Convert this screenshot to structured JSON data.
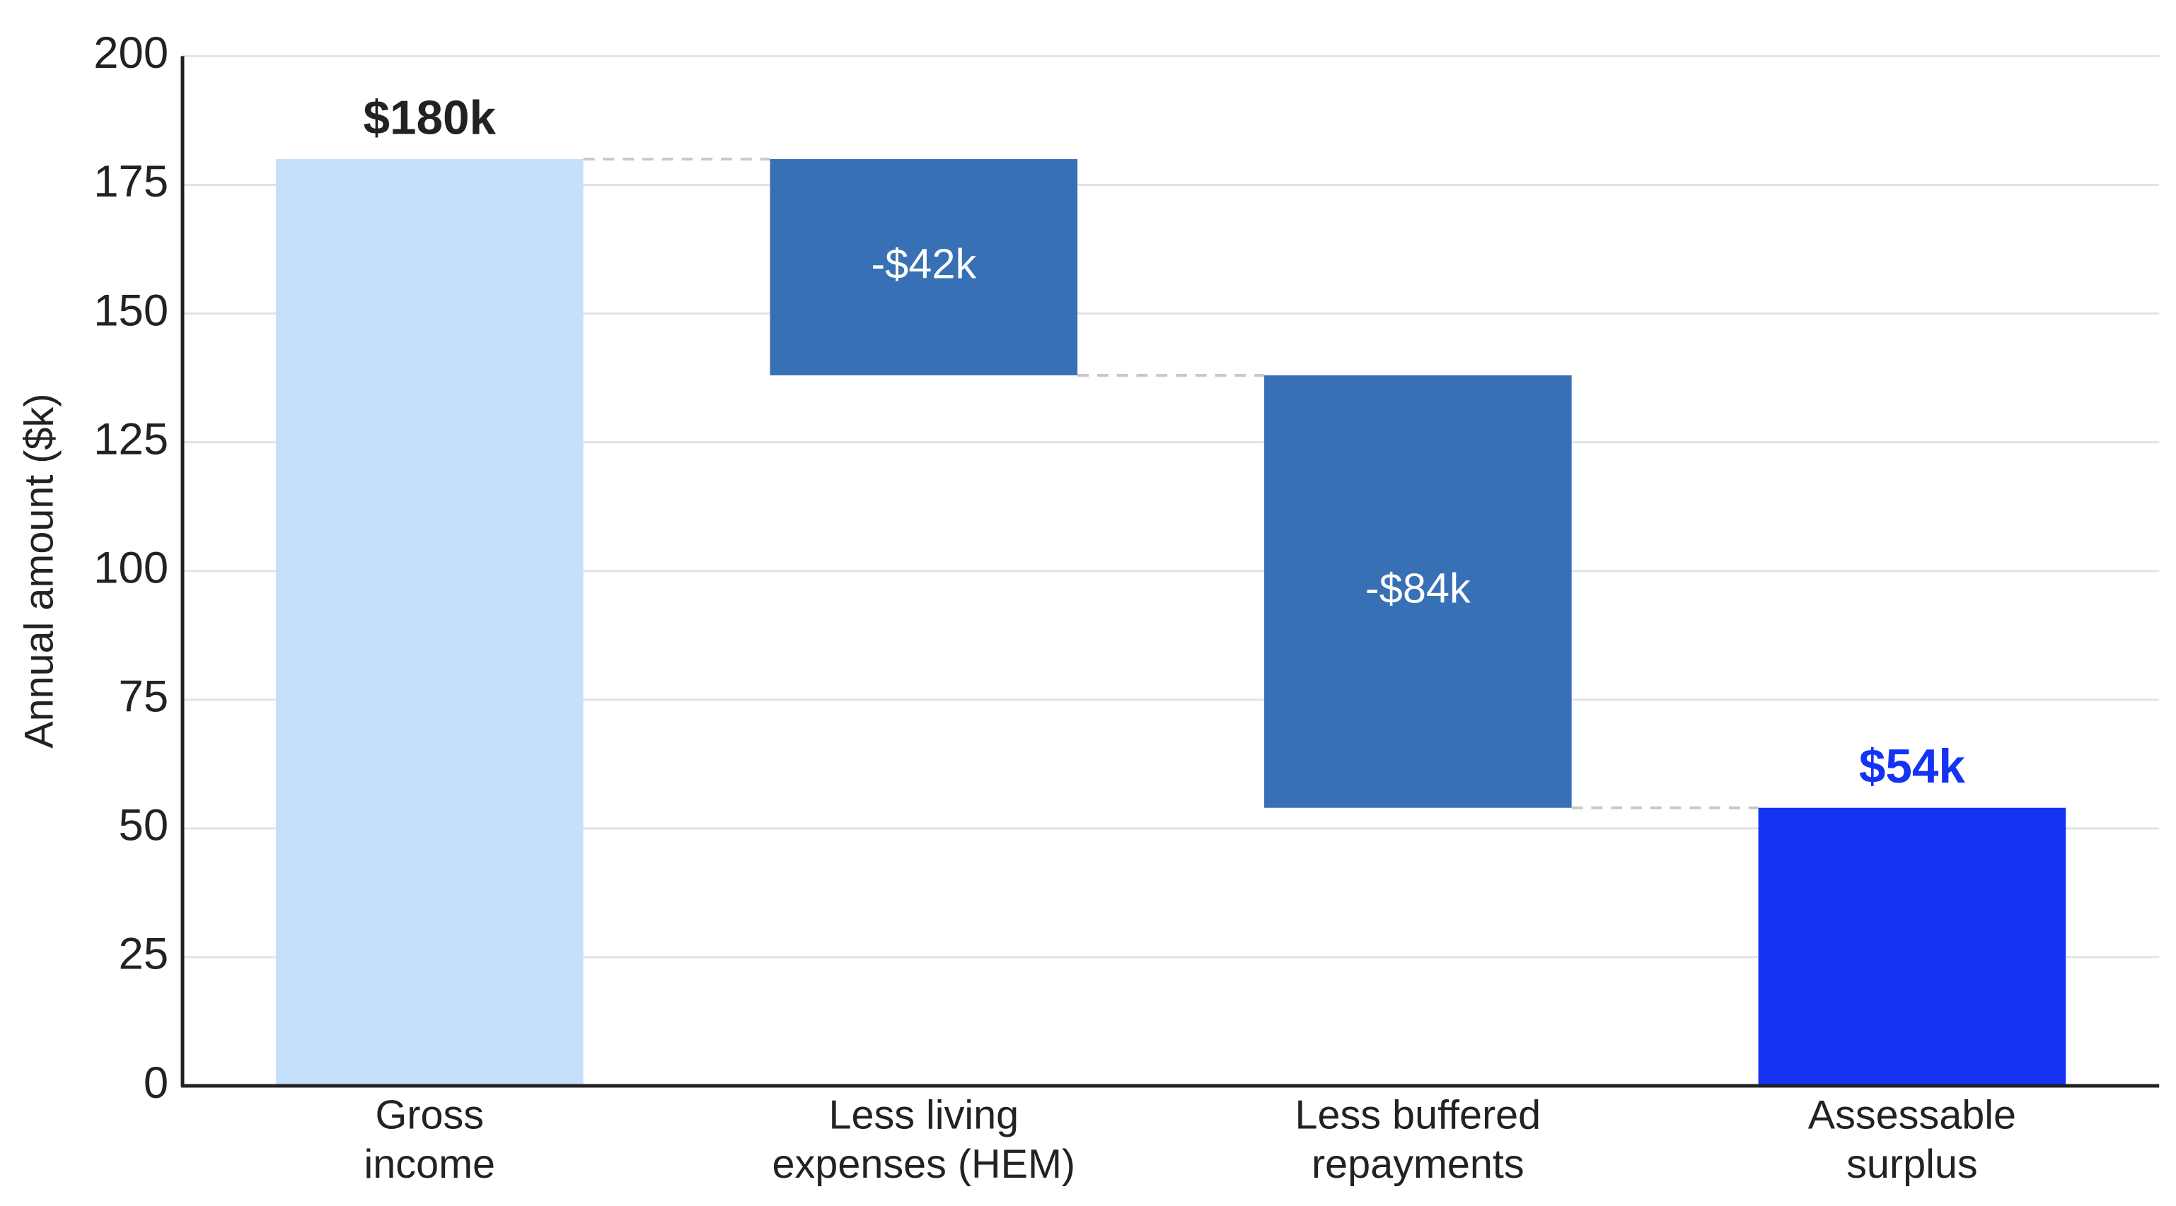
{
  "chart_data": {
    "type": "waterfall",
    "y_label": "Annual amount ($k)",
    "categories": [
      [
        "Gross",
        "income"
      ],
      [
        "Less living",
        "expenses (HEM)"
      ],
      [
        "Less buffered",
        "repayments"
      ],
      [
        "Assessable",
        "surplus"
      ]
    ],
    "measures": [
      "absolute",
      "relative",
      "relative",
      "total"
    ],
    "values": [
      180,
      -42,
      -84,
      54
    ],
    "value_labels": [
      "$180k",
      "-$42k",
      "-$84k",
      "$54k"
    ],
    "colors": [
      "#c5e0fa",
      "#3870b5",
      "#3870b5",
      "#1533f5"
    ],
    "ylim": [
      0,
      200
    ],
    "yticks": [
      0,
      25,
      50,
      75,
      100,
      125,
      150,
      175,
      200
    ],
    "grid": true
  }
}
